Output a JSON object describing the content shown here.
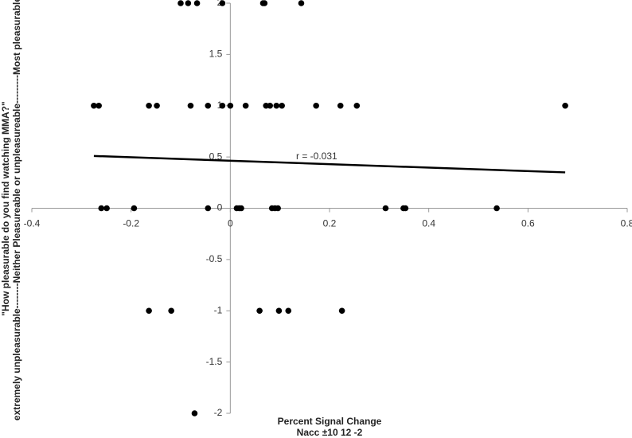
{
  "chart_data": {
    "type": "scatter",
    "xlabel": [
      "Percent Signal Change",
      "Nacc ±10 12 -2"
    ],
    "ylabel": [
      "\"How pleasurable do you find watching MMA?\"",
      "extremely unpleasurable--------Neither Pleasureable or unpleasureable---------Most pleasurable"
    ],
    "annotation": "r = -0.031",
    "color": "#000000",
    "x": [
      -0.1,
      -0.085,
      -0.067,
      -0.016,
      0.066,
      0.069,
      0.143,
      -0.275,
      -0.265,
      -0.164,
      -0.148,
      -0.08,
      -0.045,
      -0.016,
      0,
      0.031,
      0.072,
      0.08,
      0.093,
      0.104,
      0.173,
      0.222,
      0.255,
      0.675,
      -0.26,
      -0.249,
      -0.194,
      -0.045,
      0.013,
      0.018,
      0.022,
      0.084,
      0.09,
      0.096,
      0.313,
      0.349,
      0.353,
      0.537,
      -0.164,
      -0.119,
      0.059,
      0.098,
      0.117,
      0.225,
      -0.072
    ],
    "values": [
      2,
      2,
      2,
      2,
      2,
      2,
      2,
      1,
      1,
      1,
      1,
      1,
      1,
      1,
      1,
      1,
      1,
      1,
      1,
      1,
      1,
      1,
      1,
      1,
      0,
      0,
      0,
      0,
      0,
      0,
      0,
      0,
      0,
      0,
      0,
      0,
      0,
      0,
      -1,
      -1,
      -1,
      -1,
      -1,
      -1,
      -2
    ],
    "trendline": {
      "x": [
        -0.275,
        0.675
      ],
      "values": [
        0.51,
        0.35
      ]
    },
    "xlim": [
      -0.4,
      0.8
    ],
    "ylim": [
      -2,
      2
    ],
    "xticks": [
      -0.4,
      -0.2,
      0,
      0.2,
      0.4,
      0.6,
      0.8
    ],
    "yticks": [
      -2,
      -1.5,
      -1,
      -0.5,
      0,
      0.5,
      1,
      1.5,
      2
    ],
    "grid": false
  }
}
